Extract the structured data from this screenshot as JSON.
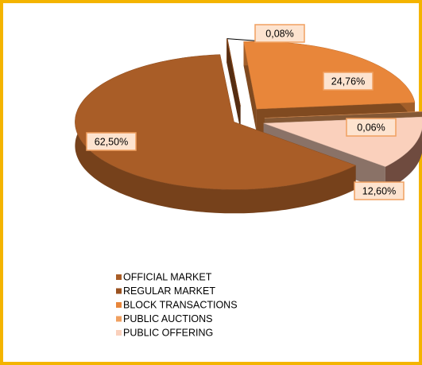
{
  "chart_data": {
    "type": "pie3d",
    "categories": [
      "OFFICIAL MARKET",
      "REGULAR MARKET",
      "BLOCK TRANSACTIONS",
      "PUBLIC AUCTIONS",
      "PUBLIC OFFERING"
    ],
    "values": [
      62.5,
      0.08,
      24.76,
      0.06,
      12.6
    ],
    "value_labels": [
      "62,50%",
      "0,08%",
      "24,76%",
      "0,06%",
      "12,60%"
    ],
    "colors": [
      "#a95d27",
      "#9a5220",
      "#e8863a",
      "#f0a060",
      "#fad0bc"
    ],
    "legend": "bottom-left"
  }
}
